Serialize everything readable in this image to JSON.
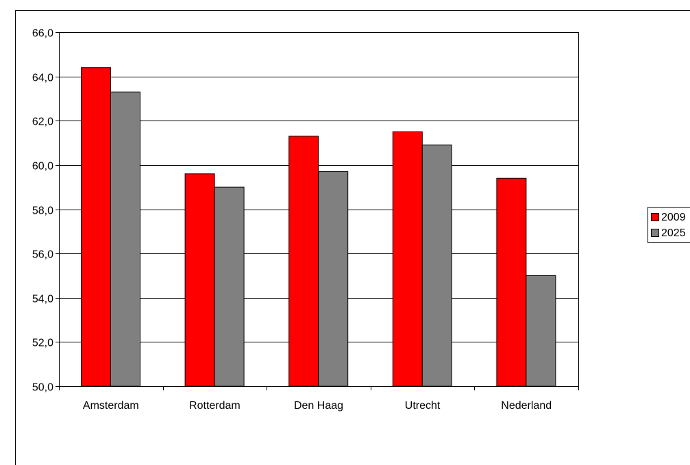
{
  "chart_data": {
    "type": "bar",
    "categories": [
      "Amsterdam",
      "Rotterdam",
      "Den Haag",
      "Utrecht",
      "Nederland"
    ],
    "series": [
      {
        "name": "2009",
        "color": "#ff0000",
        "values": [
          64.4,
          59.6,
          61.3,
          61.5,
          59.4
        ]
      },
      {
        "name": "2025",
        "color": "#808080",
        "values": [
          63.3,
          59.0,
          59.7,
          60.9,
          55.0
        ]
      }
    ],
    "yticks": [
      "50,0",
      "52,0",
      "54,0",
      "56,0",
      "58,0",
      "60,0",
      "62,0",
      "64,0",
      "66,0"
    ],
    "ylim": [
      50,
      66
    ],
    "grid": true,
    "legend_position": "right"
  }
}
